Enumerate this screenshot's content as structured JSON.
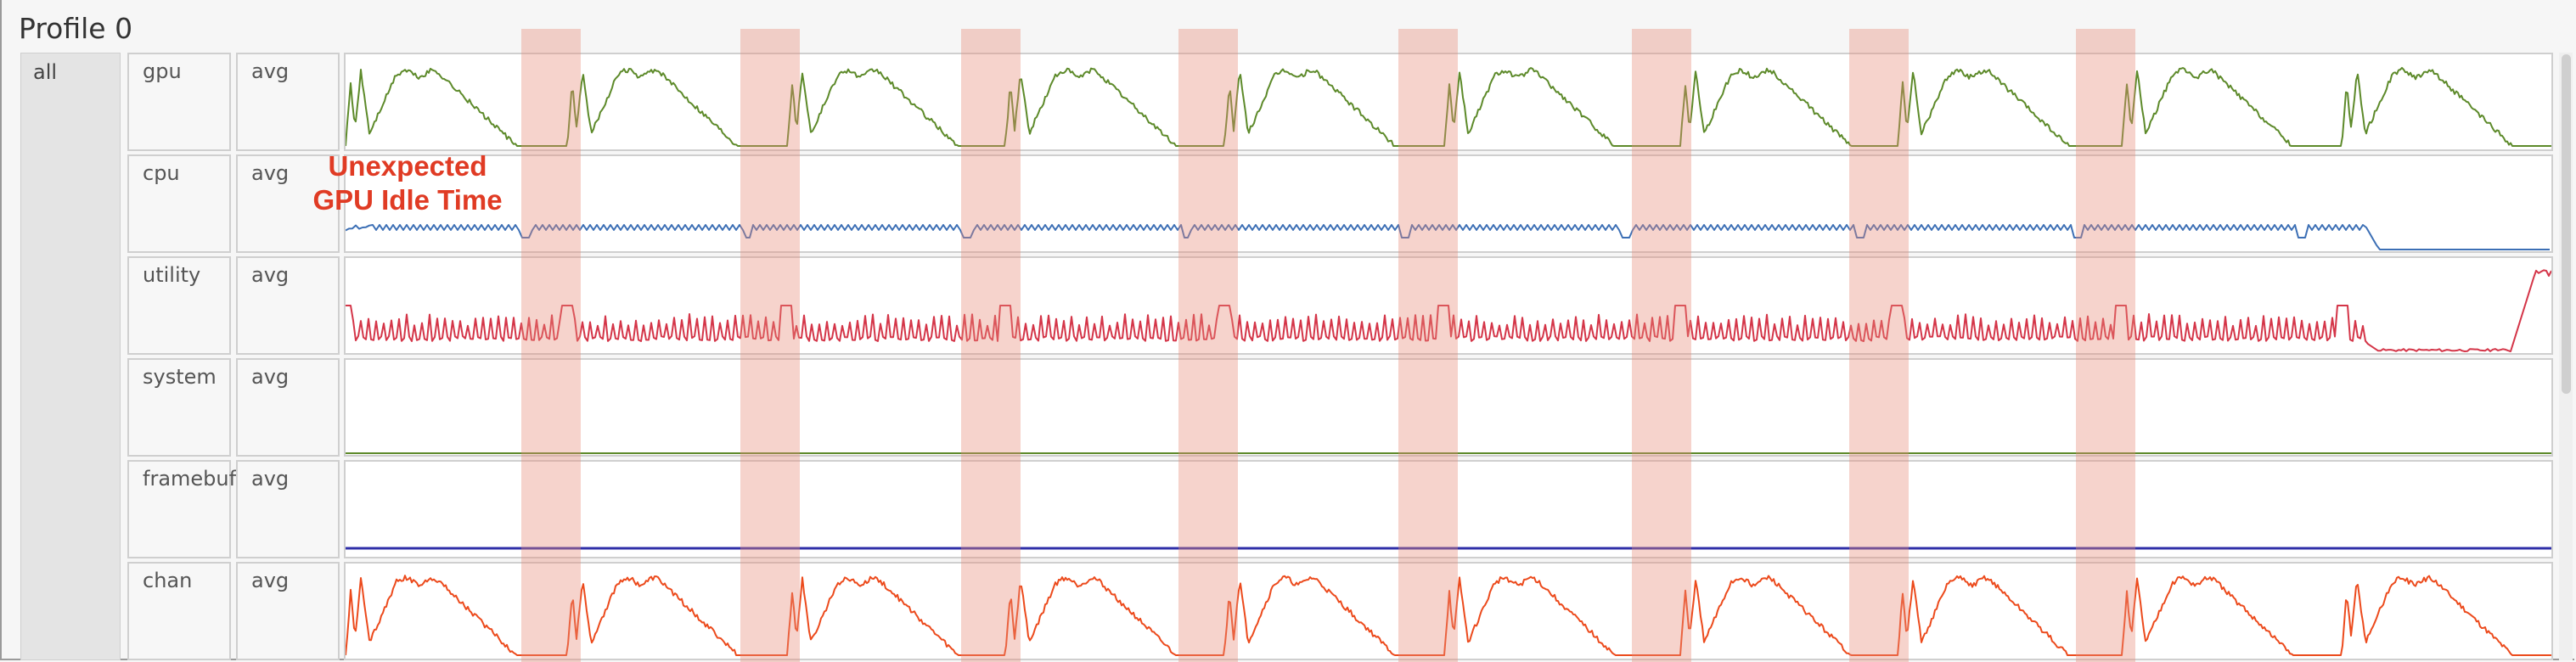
{
  "profile": {
    "title": "Profile 0",
    "group": "all"
  },
  "rows": [
    {
      "id": "gpu",
      "name": "gpu",
      "stat": "avg",
      "color": "#5d8a2a",
      "kind": "gpu"
    },
    {
      "id": "cpu",
      "name": "cpu",
      "stat": "avg",
      "color": "#3c6fb5",
      "kind": "cpu"
    },
    {
      "id": "utility",
      "name": "utility",
      "stat": "avg",
      "color": "#d43548",
      "kind": "utility"
    },
    {
      "id": "system",
      "name": "system",
      "stat": "avg",
      "color": "#5d8a2a",
      "kind": "flat"
    },
    {
      "id": "framebuffer",
      "name": "framebuffer",
      "stat": "avg",
      "color": "#2f2fa8",
      "kind": "flat"
    },
    {
      "id": "chan",
      "name": "chan",
      "stat": "avg",
      "color": "#ec4a1c",
      "kind": "chan"
    }
  ],
  "annotation": {
    "line1": "Unexpected",
    "line2": "GPU Idle Time",
    "color": "#e03b24"
  },
  "idle_band_color": "#e88c78"
}
